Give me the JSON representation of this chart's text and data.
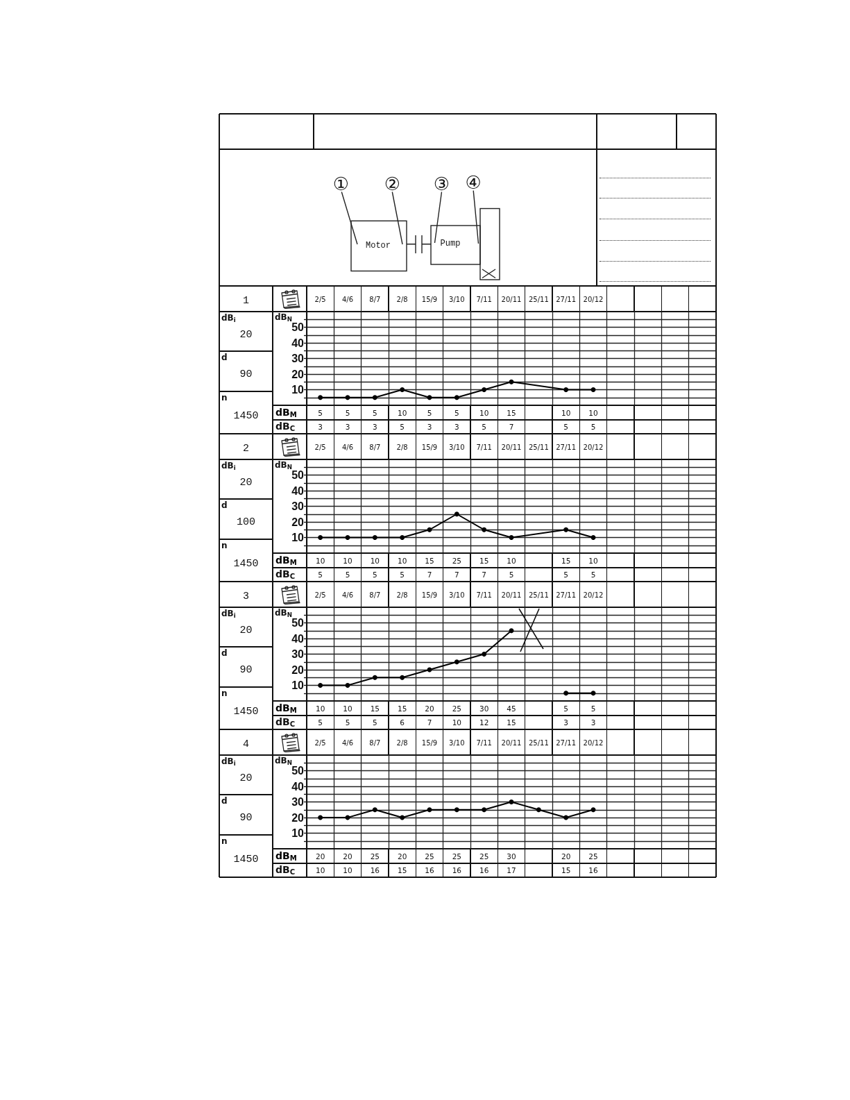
{
  "chart_data": [
    {
      "type": "other",
      "annotations": [
        "①",
        "②",
        "③",
        "④",
        "Motor",
        "Pump"
      ]
    },
    {
      "type": "line",
      "title": "1",
      "ylabel": "dB$_{N}$",
      "categories": [
        "2/5",
        "4/6",
        "8/7",
        "2/8",
        "15/9",
        "3/10",
        "7/11",
        "20/11",
        "25/11",
        "27/11",
        "20/12",
        null,
        null,
        null,
        null
      ],
      "series": [
        {
          "name": "dB$_{M}$",
          "color": "#000000",
          "values": [
            5,
            5,
            5,
            10,
            5,
            5,
            10,
            15,
            null,
            10,
            10,
            null,
            null,
            null,
            null
          ]
        }
      ],
      "ylim": [
        0,
        60
      ],
      "yticks": [
        {
          "value": 5,
          "label": null
        },
        10,
        {
          "value": 15,
          "label": null
        },
        20,
        {
          "value": 25,
          "label": null
        },
        30,
        {
          "value": 35,
          "label": null
        },
        40,
        {
          "value": 45,
          "label": null
        },
        50,
        {
          "value": 55,
          "label": null
        }
      ],
      "grid": true,
      "marker": "circle",
      "line_style": "solid",
      "data_labels": true,
      "annotations": [
        "dB$_{i}$",
        "20",
        "d",
        "90",
        "n",
        "1450",
        "dB$_{C}$",
        "3",
        "3",
        "3",
        "5",
        "3",
        "3",
        "5",
        "7",
        "5",
        "5"
      ]
    },
    {
      "type": "line",
      "title": "2",
      "ylabel": "dB$_{N}$",
      "categories": [
        "2/5",
        "4/6",
        "8/7",
        "2/8",
        "15/9",
        "3/10",
        "7/11",
        "20/11",
        "25/11",
        "27/11",
        "20/12",
        null,
        null,
        null,
        null
      ],
      "series": [
        {
          "name": "dB$_{M}$",
          "color": "#000000",
          "values": [
            10,
            10,
            10,
            10,
            15,
            25,
            15,
            10,
            null,
            15,
            10,
            null,
            null,
            null,
            null
          ]
        }
      ],
      "ylim": [
        0,
        60
      ],
      "yticks": [
        {
          "value": 5,
          "label": null
        },
        10,
        {
          "value": 15,
          "label": null
        },
        20,
        {
          "value": 25,
          "label": null
        },
        30,
        {
          "value": 35,
          "label": null
        },
        40,
        {
          "value": 45,
          "label": null
        },
        50,
        {
          "value": 55,
          "label": null
        }
      ],
      "grid": true,
      "marker": "circle",
      "line_style": "solid",
      "data_labels": true,
      "annotations": [
        "dB$_{i}$",
        "20",
        "d",
        "100",
        "n",
        "1450",
        "dB$_{C}$",
        "5",
        "5",
        "5",
        "5",
        "7",
        "7",
        "7",
        "5",
        "5",
        "5"
      ]
    },
    {
      "type": "line",
      "title": "3",
      "ylabel": "dB$_{N}$",
      "categories": [
        "2/5",
        "4/6",
        "8/7",
        "2/8",
        "15/9",
        "3/10",
        "7/11",
        "20/11",
        "25/11",
        "27/11",
        "20/12",
        null,
        null,
        null,
        null
      ],
      "series": [
        {
          "name": "dB$_{M}$",
          "color": "#000000",
          "values": [
            10,
            10,
            15,
            15,
            20,
            25,
            30,
            45,
            null,
            null,
            null,
            null,
            null,
            null,
            null
          ]
        },
        {
          "color": "#000000",
          "values": [
            null,
            null,
            null,
            null,
            null,
            null,
            null,
            null,
            null,
            5,
            5,
            null,
            null,
            null,
            null
          ]
        }
      ],
      "ylim": [
        0,
        60
      ],
      "yticks": [
        {
          "value": 5,
          "label": null
        },
        10,
        {
          "value": 15,
          "label": null
        },
        20,
        {
          "value": 25,
          "label": null
        },
        30,
        {
          "value": 35,
          "label": null
        },
        40,
        {
          "value": 45,
          "label": null
        },
        50,
        {
          "value": 55,
          "label": null
        }
      ],
      "grid": true,
      "marker": "circle",
      "line_style": "solid",
      "data_labels": true,
      "annotations": [
        "dB$_{i}$",
        "20",
        "d",
        "90",
        "n",
        "1450",
        "dB$_{C}$",
        "5",
        "5",
        "5",
        "6",
        "7",
        "10",
        "12",
        "15",
        "3",
        "3"
      ]
    },
    {
      "type": "line",
      "title": "4",
      "ylabel": "dB$_{N}$",
      "categories": [
        "2/5",
        "4/6",
        "8/7",
        "2/8",
        "15/9",
        "3/10",
        "7/11",
        "20/11",
        "25/11",
        "27/11",
        "20/12",
        null,
        null,
        null,
        null
      ],
      "series": [
        {
          "name": "dB$_{M}$",
          "color": "#000000",
          "values": [
            20,
            20,
            25,
            20,
            25,
            25,
            25,
            30,
            25,
            20,
            25,
            null,
            null,
            null,
            null
          ],
          "value_labels": [
            "20",
            "20",
            "25",
            "20",
            "25",
            "25",
            "25",
            "30",
            null,
            "20",
            "25",
            null,
            null,
            null,
            null
          ]
        }
      ],
      "ylim": [
        0,
        60
      ],
      "yticks": [
        {
          "value": 5,
          "label": null
        },
        10,
        {
          "value": 15,
          "label": null
        },
        20,
        {
          "value": 25,
          "label": null
        },
        30,
        {
          "value": 35,
          "label": null
        },
        40,
        {
          "value": 45,
          "label": null
        },
        50,
        {
          "value": 55,
          "label": null
        }
      ],
      "grid": true,
      "marker": "circle",
      "line_style": "solid",
      "annotations": [
        "dB$_{i}$",
        "20",
        "d",
        "90",
        "n",
        "1450",
        "dB$_{C}$",
        "10",
        "10",
        "16",
        "15",
        "16",
        "16",
        "16",
        "17",
        "15",
        "16"
      ]
    }
  ]
}
